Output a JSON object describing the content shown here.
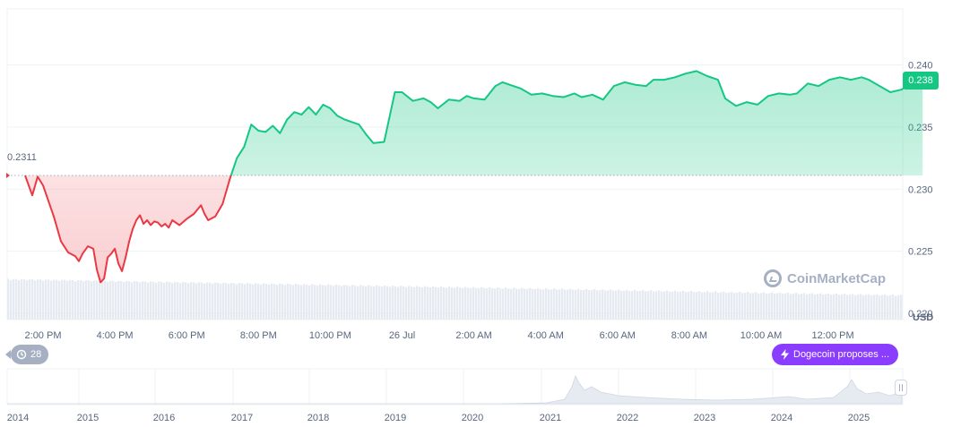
{
  "chart_data": {
    "type": "area",
    "unit": "USD",
    "baseline": 0.2311,
    "baseline_label": "0.2311",
    "current_label": "0.238",
    "ylim": [
      0.2195,
      0.2445
    ],
    "y_ticks": [
      0.22,
      0.225,
      0.23,
      0.235,
      0.24
    ],
    "y_tick_labels": [
      "0.220",
      "0.225",
      "0.230",
      "0.235",
      "0.240"
    ],
    "grid": true,
    "colors": {
      "up": "#16c784",
      "down": "#ea3943",
      "baseline": "#a6b0c3",
      "grid": "#eff2f5"
    },
    "x_tick_labels": [
      "2:00 PM",
      "4:00 PM",
      "6:00 PM",
      "8:00 PM",
      "10:00 PM",
      "26 Jul",
      "2:00 AM",
      "4:00 AM",
      "6:00 AM",
      "8:00 AM",
      "10:00 AM",
      "12:00 PM"
    ],
    "series": [
      {
        "hours_from_first_tick": [
          -0.5,
          -0.3,
          -0.15,
          0.0,
          0.3,
          0.5,
          0.7,
          0.9,
          1.0,
          1.1,
          1.25,
          1.4,
          1.5,
          1.6,
          1.7,
          1.8,
          1.9,
          2.0,
          2.1,
          2.2,
          2.3,
          2.4,
          2.5,
          2.6,
          2.7,
          2.8,
          2.9,
          3.0,
          3.1,
          3.2,
          3.3,
          3.4,
          3.5,
          3.6,
          3.8,
          4.0,
          4.2,
          4.4,
          4.5,
          4.6,
          4.8,
          5.0,
          5.2,
          5.4,
          5.6,
          5.8,
          6.0,
          6.2,
          6.4,
          6.6,
          6.8,
          7.0,
          7.2,
          7.4,
          7.6,
          7.8,
          8.0,
          8.2,
          8.4,
          8.6,
          8.8,
          9.0,
          9.2,
          9.5,
          9.8,
          10.0,
          10.3,
          10.6,
          10.8,
          11.0,
          11.3,
          11.6,
          11.8,
          12.0,
          12.3,
          12.6,
          12.8,
          13.0,
          13.3,
          13.6,
          13.9,
          14.2,
          14.5,
          14.8,
          15.0,
          15.3,
          15.6,
          15.9,
          16.2,
          16.5,
          16.8,
          17.0,
          17.3,
          17.6,
          17.9,
          18.2,
          18.5,
          18.8,
          19.0,
          19.3,
          19.6,
          19.9,
          20.2,
          20.5,
          20.8,
          21.0,
          21.3,
          21.6,
          21.9,
          22.2,
          22.5,
          22.8,
          23.0,
          23.3,
          23.6,
          23.9,
          24.2,
          24.5
        ],
        "values": [
          0.2311,
          0.2295,
          0.231,
          0.2303,
          0.2278,
          0.2258,
          0.2249,
          0.2246,
          0.2242,
          0.2248,
          0.2254,
          0.2252,
          0.2235,
          0.2225,
          0.2228,
          0.2245,
          0.2248,
          0.2252,
          0.224,
          0.2234,
          0.2245,
          0.2258,
          0.2268,
          0.2275,
          0.2279,
          0.2272,
          0.2275,
          0.2271,
          0.2274,
          0.2273,
          0.227,
          0.2272,
          0.2269,
          0.2275,
          0.2271,
          0.2276,
          0.228,
          0.2287,
          0.228,
          0.2275,
          0.2278,
          0.2288,
          0.2308,
          0.2325,
          0.2334,
          0.2352,
          0.2347,
          0.2346,
          0.2351,
          0.2345,
          0.2356,
          0.2362,
          0.236,
          0.2366,
          0.236,
          0.2368,
          0.2365,
          0.2359,
          0.2356,
          0.2354,
          0.2352,
          0.2344,
          0.2337,
          0.2338,
          0.2378,
          0.2378,
          0.2371,
          0.2373,
          0.237,
          0.2365,
          0.2372,
          0.2371,
          0.2375,
          0.2373,
          0.2372,
          0.2383,
          0.2386,
          0.2384,
          0.2381,
          0.2376,
          0.2377,
          0.2375,
          0.2374,
          0.2377,
          0.2374,
          0.2376,
          0.2372,
          0.2383,
          0.2386,
          0.2384,
          0.2383,
          0.2388,
          0.2388,
          0.239,
          0.2393,
          0.2395,
          0.2391,
          0.2388,
          0.2373,
          0.2367,
          0.237,
          0.2368,
          0.2375,
          0.2377,
          0.2376,
          0.2377,
          0.2385,
          0.2383,
          0.2388,
          0.239,
          0.2388,
          0.239,
          0.2388,
          0.2383,
          0.2378,
          0.238,
          0.2385,
          0.2383
        ]
      }
    ],
    "navigator_x_labels": [
      "2014",
      "2015",
      "2016",
      "2017",
      "2018",
      "2019",
      "2020",
      "2021",
      "2022",
      "2023",
      "2024",
      "2025"
    ]
  },
  "watermark": "CoinMarketCap",
  "history_button": {
    "label": "28",
    "icon": "history-icon"
  },
  "news_pill": {
    "label": "Dogecoin proposes ...",
    "icon": "lightning-icon"
  }
}
